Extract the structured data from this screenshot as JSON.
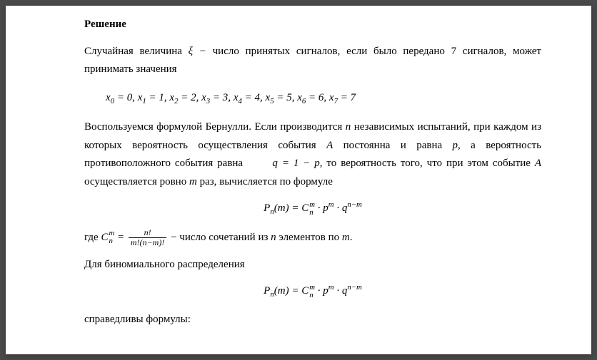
{
  "heading": "Решение",
  "p1_a": "Случайная величина ",
  "p1_xi": "ξ −",
  "p1_b": " число принятых сигналов, если было передано 7 сигналов, может принимать значения",
  "eq1_parts": {
    "x0": "x",
    "s0": "0",
    "v0": " = 0,  ",
    "x1": "x",
    "s1": "1",
    "v1": " = 1,  ",
    "x2": "x",
    "s2": "2",
    "v2": " = 2,  ",
    "x3": "x",
    "s3": "3",
    "v3": " = 3,  ",
    "x4": "x",
    "s4": "4",
    "v4": " = 4,  ",
    "x5": "x",
    "s5": "5",
    "v5": " = 5,  ",
    "x6": "x",
    "s6": "6",
    "v6": " = 6,  ",
    "x7": "x",
    "s7": "7",
    "v7": " = 7"
  },
  "p2_a": "Воспользуемся формулой Бернулли. Если производится ",
  "p2_n": "n",
  "p2_b": " независимых испытаний, при каждом из которых вероятность осуществления события ",
  "p2_A": "A",
  "p2_c": " постоянна и равна ",
  "p2_p": "p",
  "p2_d": ", а вероятность противоположного события  равна ",
  "p2_q_eq": "q = 1 − p",
  "p2_e": ", то вероятность  того, что при этом событие ",
  "p2_A2": "A",
  "p2_f": " осуществляется ровно ",
  "p2_m": "m",
  "p2_g": " раз, вычисляется по формуле",
  "eq2": {
    "P": "P",
    "n": "n",
    "arg_open": "(",
    "m": "m",
    "arg_close": ") = ",
    "C": "C",
    "Cn": "n",
    "Cm": "m",
    "dot1": " · ",
    "p": "p",
    "pm": "m",
    "dot2": " · ",
    "q": "q",
    "qexp": "n−m"
  },
  "p3_a": "где ",
  "p3_C": "C",
  "p3_Cn": "n",
  "p3_Cm": "m",
  "p3_eq": " = ",
  "p3_frac_num": "n!",
  "p3_frac_den": "m!(n−m)!",
  "p3_b": " − число сочетаний из ",
  "p3_n": "n",
  "p3_c": " элементов по ",
  "p3_m": "m",
  "p3_d": ".",
  "p4": "Для биномиального распределения",
  "p5": "справедливы формулы:"
}
